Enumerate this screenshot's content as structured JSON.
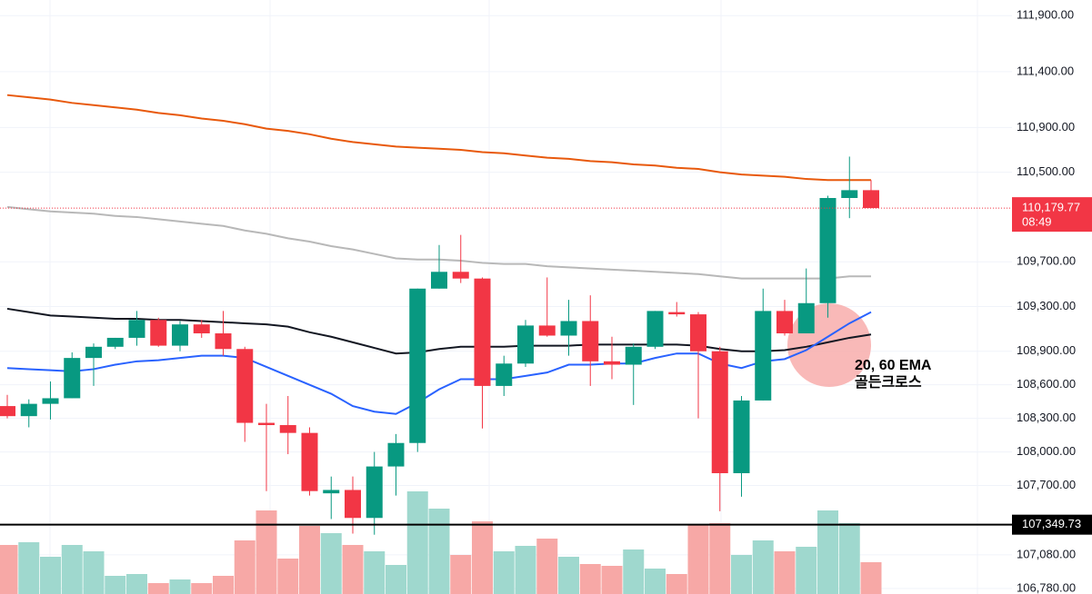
{
  "chart_data": {
    "type": "candlestick",
    "ylim": [
      106730,
      112040
    ],
    "yticks": [
      {
        "value": 111900,
        "label": "111,900.00"
      },
      {
        "value": 111400,
        "label": "111,400.00"
      },
      {
        "value": 110900,
        "label": "110,900.00"
      },
      {
        "value": 110500,
        "label": "110,500.00"
      },
      {
        "value": 109700,
        "label": "109,700.00"
      },
      {
        "value": 109300,
        "label": "109,300.00"
      },
      {
        "value": 108900,
        "label": "108,900.00"
      },
      {
        "value": 108600,
        "label": "108,600.00"
      },
      {
        "value": 108300,
        "label": "108,300.00"
      },
      {
        "value": 108000,
        "label": "108,000.00"
      },
      {
        "value": 107700,
        "label": "107,700.00"
      },
      {
        "value": 107080,
        "label": "107,080.00"
      },
      {
        "value": 106780,
        "label": "106,780.00"
      }
    ],
    "grid": true,
    "up_color": "#089981",
    "down_color": "#f23645",
    "up_volume_color": "#9fd8ce",
    "down_volume_color": "#f7a8a6",
    "open": [
      108410,
      108320,
      108430,
      108480,
      108840,
      108940,
      109020,
      109180,
      108950,
      109140,
      109060,
      108920,
      108260,
      108240,
      108170,
      107630,
      107660,
      107410,
      107870,
      108080,
      109460,
      109610,
      109550,
      108590,
      108790,
      109130,
      109040,
      109170,
      108810,
      108780,
      108940,
      109250,
      109230,
      108900,
      107810,
      108460,
      109260,
      109060,
      109330,
      110270,
      110340
    ],
    "high": [
      108510,
      108470,
      108630,
      108890,
      108970,
      109020,
      109260,
      109200,
      109170,
      109180,
      109260,
      108940,
      108430,
      108500,
      108220,
      107780,
      107780,
      108000,
      108160,
      109460,
      109850,
      109940,
      109560,
      108860,
      109180,
      109560,
      109360,
      109400,
      109030,
      108970,
      109260,
      109340,
      109250,
      108940,
      108500,
      109460,
      109360,
      109640,
      110290,
      110640,
      110430
    ],
    "low": [
      108300,
      108220,
      108290,
      108480,
      108590,
      108920,
      108950,
      108940,
      108900,
      109020,
      108860,
      108090,
      107650,
      107980,
      107610,
      107400,
      107270,
      107260,
      107610,
      108000,
      109460,
      109510,
      108210,
      108500,
      108760,
      109030,
      108860,
      108590,
      108650,
      108420,
      108920,
      109210,
      108300,
      107470,
      107600,
      108460,
      109040,
      109060,
      109200,
      110090,
      110179.77
    ],
    "close": [
      108320,
      108430,
      108480,
      108840,
      108940,
      109020,
      109180,
      108950,
      109140,
      109060,
      108920,
      108260,
      108240,
      108170,
      107650,
      107660,
      107410,
      107870,
      108080,
      109460,
      109610,
      109550,
      108590,
      108790,
      109130,
      109040,
      109170,
      108810,
      108780,
      108940,
      109260,
      109230,
      108900,
      107810,
      108460,
      109260,
      109060,
      109330,
      110270,
      110340,
      110179.77
    ],
    "volume": [
      54,
      57,
      41,
      54,
      47,
      20,
      22,
      12,
      16,
      12,
      20,
      59,
      92,
      39,
      75,
      67,
      54,
      47,
      32,
      113,
      94,
      43,
      80,
      47,
      53,
      61,
      41,
      33,
      31,
      49,
      28,
      22,
      76,
      78,
      43,
      59,
      47,
      52,
      92,
      78,
      35
    ],
    "lines": [
      {
        "color": "#e8590c",
        "values": [
          111190,
          111170,
          111150,
          111120,
          111100,
          111080,
          111060,
          111030,
          111010,
          110980,
          110960,
          110930,
          110890,
          110870,
          110840,
          110800,
          110770,
          110750,
          110730,
          110720,
          110710,
          110700,
          110680,
          110670,
          110650,
          110630,
          110620,
          110600,
          110590,
          110570,
          110560,
          110540,
          110530,
          110500,
          110480,
          110470,
          110460,
          110440,
          110430,
          110430,
          110430
        ]
      },
      {
        "color": "#b8b8b8",
        "values": [
          110190,
          110170,
          110150,
          110140,
          110130,
          110110,
          110100,
          110080,
          110060,
          110040,
          110020,
          109980,
          109950,
          109910,
          109880,
          109840,
          109810,
          109770,
          109730,
          109720,
          109720,
          109710,
          109690,
          109680,
          109680,
          109660,
          109650,
          109640,
          109630,
          109620,
          109610,
          109600,
          109590,
          109570,
          109550,
          109550,
          109550,
          109550,
          109550,
          109570,
          109570
        ]
      },
      {
        "color": "#131722",
        "values": [
          109280,
          109250,
          109220,
          109210,
          109200,
          109190,
          109190,
          109180,
          109180,
          109170,
          109160,
          109150,
          109140,
          109120,
          109070,
          109030,
          108980,
          108930,
          108880,
          108890,
          108920,
          108940,
          108940,
          108940,
          108950,
          108950,
          108950,
          108960,
          108960,
          108960,
          108960,
          108960,
          108950,
          108920,
          108900,
          108900,
          108910,
          108940,
          108980,
          109020,
          109050
        ]
      },
      {
        "color": "#2962ff",
        "values": [
          108750,
          108740,
          108730,
          108720,
          108740,
          108780,
          108810,
          108820,
          108840,
          108860,
          108860,
          108840,
          108760,
          108680,
          108600,
          108520,
          108410,
          108360,
          108340,
          108440,
          108560,
          108650,
          108650,
          108650,
          108680,
          108710,
          108780,
          108780,
          108790,
          108790,
          108840,
          108880,
          108880,
          108790,
          108750,
          108810,
          108830,
          108910,
          109030,
          109150,
          109250
        ]
      }
    ],
    "price_line": {
      "value": 110179.77,
      "label": "110,179.77",
      "time": "08:49",
      "color": "#f23645"
    },
    "level_line": {
      "value": 107349.73,
      "label": "107,349.73",
      "color": "#000000"
    },
    "annotation": {
      "lines": [
        "20, 60 EMA",
        "골든크로스"
      ],
      "color": "#f7a8a6"
    }
  }
}
